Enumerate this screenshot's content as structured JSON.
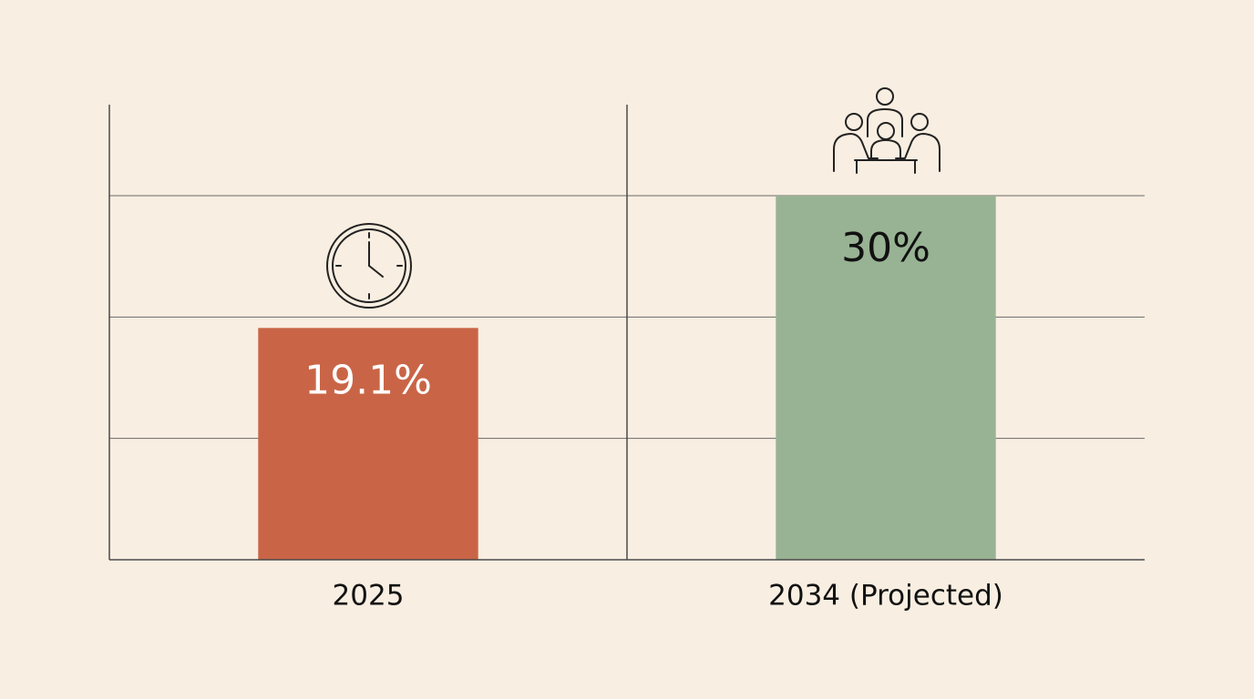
{
  "chart_data": {
    "type": "bar",
    "categories": [
      "2025",
      "2034 (Projected)"
    ],
    "values": [
      19.1,
      30
    ],
    "value_labels": [
      "19.1%",
      "30%"
    ],
    "colors": [
      "#c96546",
      "#98b393"
    ],
    "ylim": [
      0,
      37.5
    ],
    "yticks": [
      10,
      20,
      30
    ],
    "grid": true
  }
}
